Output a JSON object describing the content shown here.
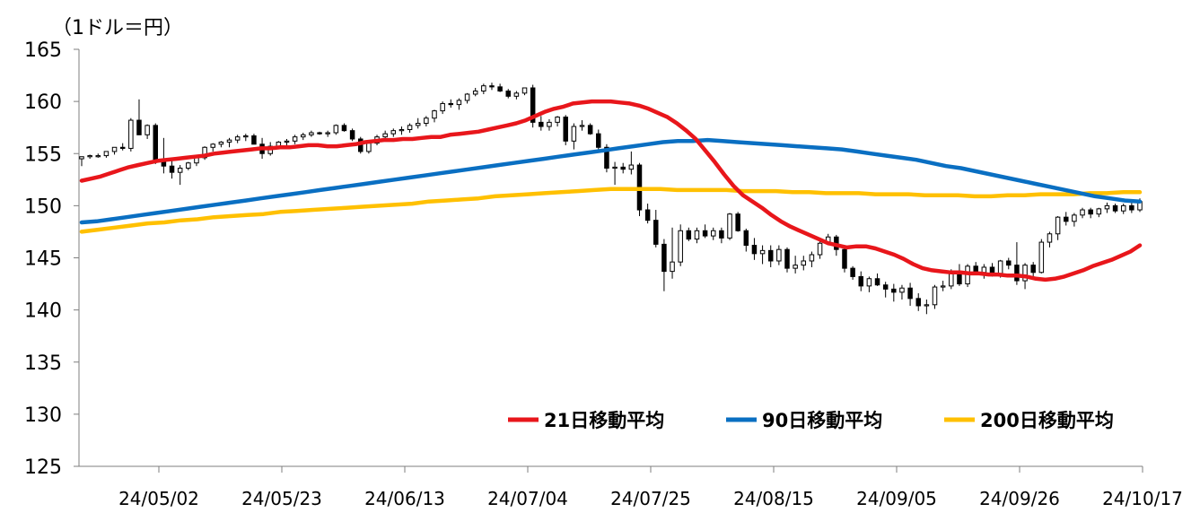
{
  "chart_data": {
    "type": "line",
    "unit_label": "（1ドル＝円）",
    "x_tick_labels": [
      "24/05/02",
      "24/05/23",
      "24/06/13",
      "24/07/04",
      "24/07/25",
      "24/08/15",
      "24/09/05",
      "24/09/26",
      "24/10/17"
    ],
    "y_tick_labels": [
      "165",
      "160",
      "155",
      "150",
      "145",
      "140",
      "135",
      "130",
      "125"
    ],
    "ylim": [
      125,
      165
    ],
    "grid": false,
    "legend_position": "bottom-right",
    "colors": {
      "ma21": "#e8161b",
      "ma90": "#0a6fc2",
      "ma200": "#ffc000",
      "candle": "#000000",
      "axis": "#7f7f7f"
    },
    "candles": [
      [
        154.5,
        154.7,
        153.8,
        154.7
      ],
      [
        154.7,
        154.9,
        154.5,
        154.8
      ],
      [
        154.8,
        155.0,
        154.6,
        154.8
      ],
      [
        154.8,
        155.2,
        154.6,
        155.2
      ],
      [
        155.2,
        155.6,
        154.9,
        155.6
      ],
      [
        155.6,
        156.0,
        155.3,
        155.5
      ],
      [
        155.5,
        158.4,
        155.2,
        158.2
      ],
      [
        158.2,
        160.2,
        156.8,
        156.8
      ],
      [
        156.8,
        157.8,
        156.4,
        157.7
      ],
      [
        157.7,
        157.9,
        154.0,
        154.4
      ],
      [
        154.4,
        156.5,
        153.1,
        153.8
      ],
      [
        153.8,
        154.4,
        152.6,
        153.2
      ],
      [
        153.2,
        153.9,
        152.0,
        153.6
      ],
      [
        153.6,
        154.2,
        153.4,
        154.1
      ],
      [
        154.1,
        154.7,
        153.8,
        154.6
      ],
      [
        154.6,
        155.7,
        154.4,
        155.6
      ],
      [
        155.6,
        156.0,
        155.2,
        155.9
      ],
      [
        155.9,
        156.2,
        155.6,
        156.1
      ],
      [
        156.1,
        156.5,
        155.6,
        156.3
      ],
      [
        156.3,
        156.8,
        156.0,
        156.6
      ],
      [
        156.6,
        156.9,
        156.2,
        156.7
      ],
      [
        156.7,
        156.9,
        155.9,
        155.9
      ],
      [
        155.9,
        156.5,
        154.5,
        155.0
      ],
      [
        155.0,
        156.1,
        154.8,
        155.7
      ],
      [
        155.7,
        156.2,
        155.5,
        156.1
      ],
      [
        156.1,
        156.4,
        155.8,
        156.2
      ],
      [
        156.2,
        156.8,
        155.9,
        156.6
      ],
      [
        156.6,
        157.0,
        156.3,
        156.8
      ],
      [
        156.8,
        157.2,
        156.6,
        157.0
      ],
      [
        157.0,
        157.1,
        156.8,
        156.9
      ],
      [
        156.9,
        157.2,
        156.6,
        157.0
      ],
      [
        157.0,
        157.8,
        156.8,
        157.7
      ],
      [
        157.7,
        157.9,
        157.1,
        157.2
      ],
      [
        157.2,
        157.4,
        156.2,
        156.4
      ],
      [
        156.4,
        156.6,
        155.0,
        155.2
      ],
      [
        155.2,
        156.2,
        155.0,
        156.0
      ],
      [
        156.0,
        156.8,
        155.8,
        156.6
      ],
      [
        156.6,
        157.2,
        156.4,
        156.9
      ],
      [
        156.9,
        157.4,
        156.6,
        157.2
      ],
      [
        157.2,
        157.6,
        156.8,
        157.3
      ],
      [
        157.3,
        157.9,
        157.0,
        157.7
      ],
      [
        157.7,
        158.4,
        157.4,
        157.9
      ],
      [
        157.9,
        158.6,
        157.6,
        158.4
      ],
      [
        158.4,
        159.2,
        158.0,
        159.1
      ],
      [
        159.1,
        160.0,
        158.8,
        159.8
      ],
      [
        159.8,
        160.2,
        159.4,
        159.7
      ],
      [
        159.7,
        160.3,
        159.2,
        160.1
      ],
      [
        160.1,
        160.8,
        159.8,
        160.7
      ],
      [
        160.7,
        161.3,
        160.5,
        161.0
      ],
      [
        161.0,
        161.7,
        160.7,
        161.5
      ],
      [
        161.5,
        161.8,
        161.1,
        161.4
      ],
      [
        161.4,
        161.7,
        160.9,
        161.0
      ],
      [
        161.0,
        161.2,
        160.3,
        160.5
      ],
      [
        160.5,
        161.0,
        160.2,
        160.8
      ],
      [
        160.8,
        161.3,
        160.6,
        161.3
      ],
      [
        161.3,
        161.6,
        157.5,
        158.0
      ],
      [
        158.0,
        158.6,
        157.2,
        157.6
      ],
      [
        157.6,
        158.3,
        157.2,
        158.0
      ],
      [
        158.0,
        158.6,
        157.6,
        158.5
      ],
      [
        158.5,
        158.7,
        155.8,
        156.2
      ],
      [
        156.2,
        157.9,
        155.4,
        157.6
      ],
      [
        157.6,
        158.2,
        157.2,
        157.7
      ],
      [
        157.7,
        157.9,
        156.8,
        156.9
      ],
      [
        156.9,
        157.3,
        155.3,
        155.6
      ],
      [
        155.6,
        155.9,
        153.2,
        153.6
      ],
      [
        153.6,
        154.2,
        152.0,
        153.7
      ],
      [
        153.7,
        154.1,
        153.1,
        153.5
      ],
      [
        153.5,
        155.2,
        153.0,
        153.9
      ],
      [
        153.9,
        154.1,
        149.0,
        149.6
      ],
      [
        149.6,
        150.2,
        148.3,
        148.6
      ],
      [
        148.6,
        149.6,
        146.0,
        146.3
      ],
      [
        146.3,
        146.8,
        141.8,
        143.7
      ],
      [
        143.7,
        147.9,
        143.0,
        144.6
      ],
      [
        144.6,
        148.2,
        144.2,
        147.6
      ],
      [
        147.6,
        147.9,
        146.6,
        146.8
      ],
      [
        146.8,
        147.9,
        146.4,
        147.6
      ],
      [
        147.6,
        148.2,
        146.9,
        147.1
      ],
      [
        147.1,
        147.9,
        146.7,
        147.6
      ],
      [
        147.6,
        147.9,
        146.4,
        146.9
      ],
      [
        146.9,
        149.3,
        146.7,
        149.2
      ],
      [
        149.2,
        149.4,
        147.5,
        147.6
      ],
      [
        147.6,
        147.8,
        145.6,
        146.2
      ],
      [
        146.2,
        146.9,
        144.8,
        145.4
      ],
      [
        145.4,
        146.2,
        144.4,
        145.7
      ],
      [
        145.7,
        146.2,
        144.1,
        144.7
      ],
      [
        144.7,
        146.2,
        144.3,
        145.8
      ],
      [
        145.8,
        146.0,
        143.6,
        144.0
      ],
      [
        144.0,
        145.2,
        143.5,
        144.3
      ],
      [
        144.3,
        145.2,
        143.8,
        144.7
      ],
      [
        144.7,
        145.6,
        144.1,
        145.3
      ],
      [
        145.3,
        146.6,
        144.9,
        146.4
      ],
      [
        146.4,
        147.3,
        146.2,
        147.0
      ],
      [
        147.0,
        147.2,
        145.2,
        145.8
      ],
      [
        145.8,
        146.0,
        143.6,
        144.0
      ],
      [
        144.0,
        144.2,
        142.9,
        143.2
      ],
      [
        143.2,
        143.7,
        141.8,
        142.3
      ],
      [
        142.3,
        143.2,
        141.7,
        143.0
      ],
      [
        143.0,
        143.5,
        142.3,
        142.4
      ],
      [
        142.4,
        142.7,
        141.2,
        142.0
      ],
      [
        142.0,
        142.5,
        140.8,
        141.7
      ],
      [
        141.7,
        142.4,
        141.0,
        142.1
      ],
      [
        142.1,
        142.6,
        140.4,
        141.1
      ],
      [
        141.1,
        141.6,
        139.9,
        140.4
      ],
      [
        140.4,
        141.0,
        139.6,
        140.5
      ],
      [
        140.5,
        142.4,
        140.1,
        142.2
      ],
      [
        142.2,
        142.8,
        141.8,
        142.3
      ],
      [
        142.3,
        143.9,
        142.0,
        143.6
      ],
      [
        143.6,
        144.4,
        142.3,
        142.5
      ],
      [
        142.5,
        144.4,
        142.2,
        144.2
      ],
      [
        144.2,
        144.6,
        143.4,
        143.6
      ],
      [
        143.6,
        144.4,
        143.0,
        144.1
      ],
      [
        144.1,
        144.5,
        143.2,
        143.5
      ],
      [
        143.5,
        144.8,
        143.1,
        144.7
      ],
      [
        144.7,
        145.0,
        143.9,
        144.3
      ],
      [
        144.3,
        146.5,
        142.4,
        142.8
      ],
      [
        142.8,
        144.5,
        142.0,
        144.3
      ],
      [
        144.3,
        144.6,
        142.9,
        143.6
      ],
      [
        143.6,
        146.8,
        143.5,
        146.5
      ],
      [
        146.5,
        147.5,
        146.0,
        147.3
      ],
      [
        147.3,
        149.0,
        146.7,
        148.9
      ],
      [
        148.9,
        149.4,
        148.1,
        148.5
      ],
      [
        148.5,
        149.3,
        148.0,
        149.1
      ],
      [
        149.1,
        149.8,
        148.8,
        149.6
      ],
      [
        149.6,
        149.8,
        148.8,
        149.2
      ],
      [
        149.2,
        149.8,
        148.9,
        149.7
      ],
      [
        149.7,
        150.3,
        149.3,
        150.0
      ],
      [
        150.0,
        150.2,
        149.3,
        149.5
      ],
      [
        149.5,
        150.2,
        149.2,
        150.0
      ],
      [
        150.0,
        150.4,
        149.3,
        149.6
      ],
      [
        149.6,
        150.7,
        149.4,
        150.4
      ]
    ],
    "series": [
      {
        "name": "21日移動平均",
        "values": [
          152.4,
          152.6,
          152.8,
          153.1,
          153.4,
          153.7,
          153.9,
          154.1,
          154.3,
          154.4,
          154.5,
          154.6,
          154.7,
          154.8,
          155.0,
          155.1,
          155.2,
          155.3,
          155.4,
          155.5,
          155.5,
          155.6,
          155.6,
          155.7,
          155.8,
          155.8,
          155.7,
          155.7,
          155.8,
          155.9,
          156.1,
          156.2,
          156.3,
          156.3,
          156.4,
          156.4,
          156.5,
          156.6,
          156.6,
          156.8,
          156.9,
          157.0,
          157.1,
          157.3,
          157.5,
          157.7,
          157.9,
          158.2,
          158.6,
          159.0,
          159.3,
          159.5,
          159.8,
          159.9,
          160.0,
          160.0,
          160.0,
          159.9,
          159.8,
          159.6,
          159.3,
          158.9,
          158.5,
          157.9,
          157.2,
          156.4,
          155.3,
          154.2,
          153.0,
          151.9,
          151.0,
          150.4,
          149.8,
          149.1,
          148.5,
          148.0,
          147.6,
          147.2,
          146.8,
          146.4,
          146.2,
          146.0,
          146.1,
          146.1,
          145.9,
          145.6,
          145.3,
          144.9,
          144.4,
          144.0,
          143.8,
          143.7,
          143.6,
          143.6,
          143.5,
          143.5,
          143.4,
          143.4,
          143.3,
          143.3,
          143.2,
          143.0,
          142.9,
          143.0,
          143.2,
          143.5,
          143.8,
          144.2,
          144.5,
          144.8,
          145.2,
          145.6,
          146.2
        ]
      },
      {
        "name": "90日移動平均",
        "values": [
          148.4,
          148.5,
          148.7,
          148.9,
          149.1,
          149.3,
          149.5,
          149.7,
          149.9,
          150.1,
          150.3,
          150.5,
          150.7,
          150.9,
          151.1,
          151.3,
          151.5,
          151.7,
          151.9,
          152.1,
          152.3,
          152.5,
          152.7,
          152.9,
          153.1,
          153.3,
          153.5,
          153.7,
          153.9,
          154.1,
          154.3,
          154.5,
          154.7,
          154.9,
          155.1,
          155.3,
          155.5,
          155.7,
          155.9,
          156.1,
          156.2,
          156.2,
          156.3,
          156.2,
          156.1,
          156.0,
          155.9,
          155.8,
          155.7,
          155.6,
          155.5,
          155.4,
          155.2,
          155.0,
          154.8,
          154.6,
          154.4,
          154.1,
          153.8,
          153.6,
          153.3,
          153.0,
          152.7,
          152.4,
          152.1,
          151.8,
          151.5,
          151.2,
          150.9,
          150.7,
          150.5,
          150.4
        ]
      },
      {
        "name": "200日移動平均",
        "values": [
          147.5,
          147.7,
          147.9,
          148.1,
          148.3,
          148.4,
          148.6,
          148.7,
          148.9,
          149.0,
          149.1,
          149.2,
          149.4,
          149.5,
          149.6,
          149.7,
          149.8,
          149.9,
          150.0,
          150.1,
          150.2,
          150.4,
          150.5,
          150.6,
          150.7,
          150.9,
          151.0,
          151.1,
          151.2,
          151.3,
          151.4,
          151.5,
          151.6,
          151.6,
          151.6,
          151.6,
          151.5,
          151.5,
          151.5,
          151.5,
          151.4,
          151.4,
          151.4,
          151.3,
          151.3,
          151.2,
          151.2,
          151.2,
          151.1,
          151.1,
          151.1,
          151.0,
          151.0,
          151.0,
          150.9,
          150.9,
          151.0,
          151.0,
          151.1,
          151.1,
          151.1,
          151.2,
          151.2,
          151.3,
          151.3
        ]
      }
    ]
  }
}
